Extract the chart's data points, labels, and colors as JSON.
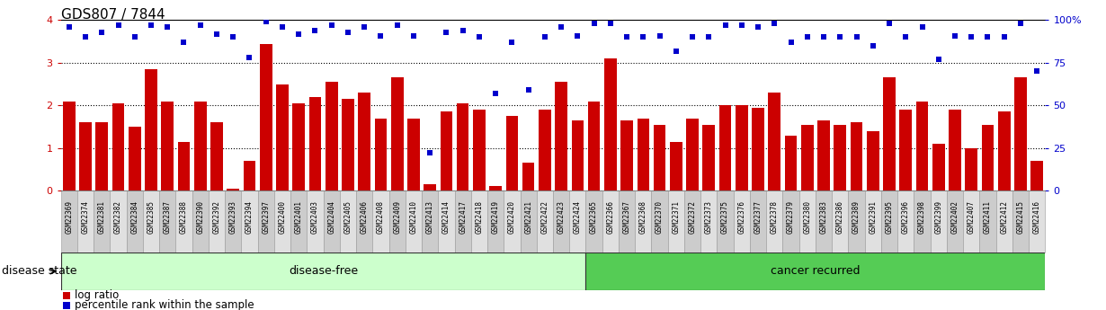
{
  "title": "GDS807 / 7844",
  "samples": [
    "GSM22369",
    "GSM22374",
    "GSM22381",
    "GSM22382",
    "GSM22384",
    "GSM22385",
    "GSM22387",
    "GSM22388",
    "GSM22390",
    "GSM22392",
    "GSM22393",
    "GSM22394",
    "GSM22397",
    "GSM22400",
    "GSM22401",
    "GSM22403",
    "GSM22404",
    "GSM22405",
    "GSM22406",
    "GSM22408",
    "GSM22409",
    "GSM22410",
    "GSM22413",
    "GSM22414",
    "GSM22417",
    "GSM22418",
    "GSM22419",
    "GSM22420",
    "GSM22421",
    "GSM22422",
    "GSM22423",
    "GSM22424",
    "GSM22365",
    "GSM22366",
    "GSM22367",
    "GSM22368",
    "GSM22370",
    "GSM22371",
    "GSM22372",
    "GSM22373",
    "GSM22375",
    "GSM22376",
    "GSM22377",
    "GSM22378",
    "GSM22379",
    "GSM22380",
    "GSM22383",
    "GSM22386",
    "GSM22389",
    "GSM22391",
    "GSM22395",
    "GSM22396",
    "GSM22398",
    "GSM22399",
    "GSM22402",
    "GSM22407",
    "GSM22411",
    "GSM22412",
    "GSM22415",
    "GSM22416"
  ],
  "log_ratio": [
    2.1,
    1.6,
    1.6,
    2.05,
    1.5,
    2.85,
    2.1,
    1.15,
    2.1,
    1.6,
    0.05,
    0.7,
    3.45,
    2.5,
    2.05,
    2.2,
    2.55,
    2.15,
    2.3,
    1.7,
    2.65,
    1.7,
    0.15,
    1.85,
    2.05,
    1.9,
    0.1,
    1.75,
    0.65,
    1.9,
    2.55,
    1.65,
    2.1,
    3.1,
    1.65,
    1.7,
    1.55,
    1.15,
    1.7,
    1.55,
    2.0,
    2.0,
    1.95,
    2.3,
    1.3,
    1.55,
    1.65,
    1.55,
    1.6,
    1.4,
    2.65,
    1.9,
    2.1,
    1.1,
    1.9,
    1.0,
    1.55,
    1.85,
    2.65,
    0.7
  ],
  "percentile": [
    96,
    90,
    93,
    97,
    90,
    97,
    96,
    87,
    97,
    92,
    90,
    78,
    99,
    96,
    92,
    94,
    97,
    93,
    96,
    91,
    97,
    91,
    22,
    93,
    94,
    90,
    57,
    87,
    59,
    90,
    96,
    91,
    98,
    98,
    90,
    90,
    91,
    82,
    90,
    90,
    97,
    97,
    96,
    98,
    87,
    90,
    90,
    90,
    90,
    85,
    98,
    90,
    96,
    77,
    91,
    90,
    90,
    90,
    98,
    70
  ],
  "disease_free_count": 32,
  "bar_color": "#cc0000",
  "dot_color": "#0000cc",
  "disease_free_color": "#ccffcc",
  "cancer_recurred_color": "#55cc55",
  "left_axis_color": "#cc0000",
  "right_axis_color": "#0000cc",
  "ylim_left": [
    0,
    4
  ],
  "ylim_right": [
    0,
    100
  ],
  "yticks_left": [
    0,
    1,
    2,
    3,
    4
  ],
  "yticks_right": [
    0,
    25,
    50,
    75,
    100
  ],
  "grid_values": [
    1,
    2,
    3
  ],
  "bg_color": "#ffffff",
  "label_box_color_odd": "#cccccc",
  "label_box_color_even": "#e0e0e0"
}
